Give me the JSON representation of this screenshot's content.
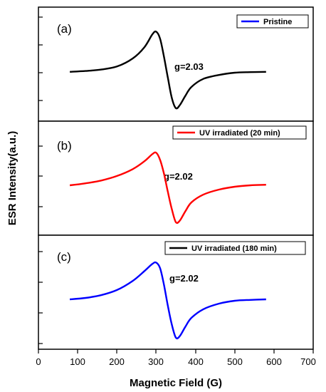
{
  "chart_data": {
    "type": "line",
    "xlabel": "Magnetic Field (G)",
    "ylabel": "ESR Intensity(a.u.)",
    "xlim": [
      0,
      700
    ],
    "xticks": [
      "0",
      "100",
      "200",
      "300",
      "400",
      "500",
      "600",
      "700"
    ],
    "grid": false,
    "panels": [
      {
        "letter": "(a)",
        "annotation": "g=2.03",
        "series": [
          {
            "name": "Pristine",
            "color": "#000000",
            "x": [
              80,
              120,
              160,
              200,
              240,
              270,
              290,
              300,
              310,
              320,
              330,
              340,
              350,
              360,
              375,
              390,
              420,
              460,
              500,
              540,
              580
            ],
            "y": [
              0.03,
              0.06,
              0.11,
              0.22,
              0.5,
              0.9,
              1.35,
              1.45,
              1.2,
              0.55,
              -0.2,
              -0.9,
              -1.25,
              -1.15,
              -0.8,
              -0.5,
              -0.22,
              -0.08,
              0.0,
              0.02,
              0.03
            ]
          }
        ]
      },
      {
        "letter": "(b)",
        "annotation": "g=2.02",
        "series": [
          {
            "name": "UV irradiated (20 min)",
            "color": "#ff0000",
            "x": [
              80,
              120,
              160,
              200,
              240,
              270,
              290,
              300,
              310,
              320,
              330,
              340,
              350,
              360,
              375,
              390,
              420,
              460,
              500,
              540,
              580
            ],
            "y": [
              0.05,
              0.12,
              0.22,
              0.38,
              0.62,
              0.9,
              1.15,
              1.2,
              0.95,
              0.45,
              -0.2,
              -0.8,
              -1.25,
              -1.2,
              -0.85,
              -0.55,
              -0.28,
              -0.1,
              0.0,
              0.05,
              0.07
            ]
          }
        ]
      },
      {
        "letter": "(c)",
        "annotation": "g=2.02",
        "series": [
          {
            "name": "UV irradiated (180 min)",
            "color": "#0000ff",
            "x": [
              80,
              120,
              160,
              200,
              240,
              270,
              290,
              300,
              310,
              320,
              330,
              340,
              350,
              360,
              375,
              390,
              420,
              460,
              500,
              540,
              580
            ],
            "y": [
              0.05,
              0.1,
              0.2,
              0.38,
              0.7,
              1.05,
              1.3,
              1.35,
              1.15,
              0.55,
              -0.2,
              -0.85,
              -1.3,
              -1.25,
              -0.9,
              -0.6,
              -0.3,
              -0.1,
              0.0,
              0.03,
              0.05
            ]
          }
        ]
      }
    ]
  }
}
